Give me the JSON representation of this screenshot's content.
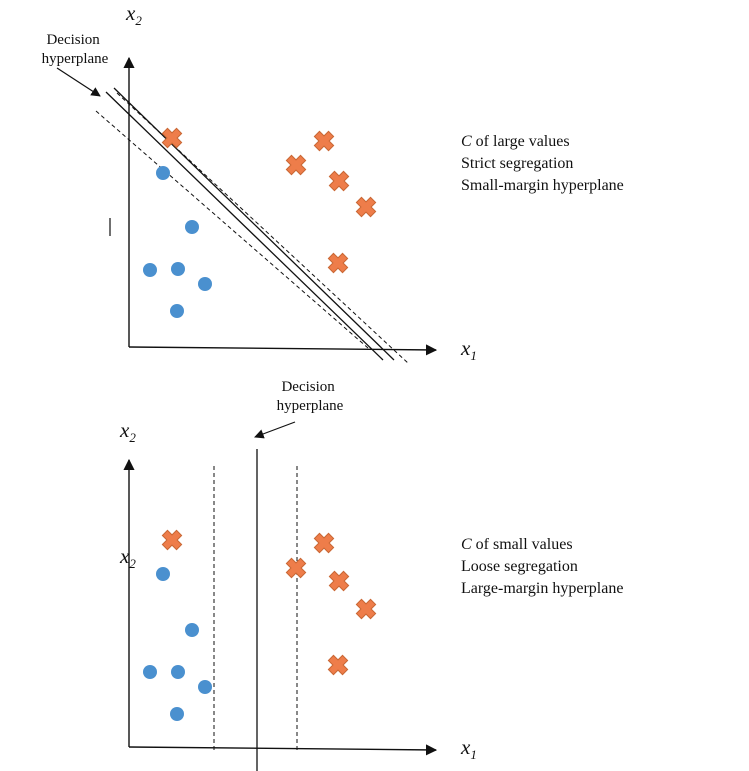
{
  "colors": {
    "circle_class": "#4a90cf",
    "cross_class": "#ee7d4a",
    "line": "#111111"
  },
  "top_panel": {
    "x_axis_label": "x",
    "x_axis_sub": "1",
    "y_axis_label": "x",
    "y_axis_sub": "2",
    "pointer_label_line1": "Decision",
    "pointer_label_line2": "hyperplane",
    "note": {
      "c_symbol": "C",
      "line1_rest": " of large values",
      "line2": "Strict segregation",
      "line3": "Small-margin hyperplane"
    }
  },
  "bottom_panel": {
    "x_axis_label": "x",
    "x_axis_sub": "1",
    "y_axis_label": "x",
    "y_axis_sub": "2",
    "extra_y_label": "x",
    "extra_y_sub": "2",
    "pointer_label_line1": "Decision",
    "pointer_label_line2": "hyperplane",
    "note": {
      "c_symbol": "C",
      "line1_rest": " of small values",
      "line2": "Loose segregation",
      "line3": "Large-margin hyperplane"
    }
  }
}
